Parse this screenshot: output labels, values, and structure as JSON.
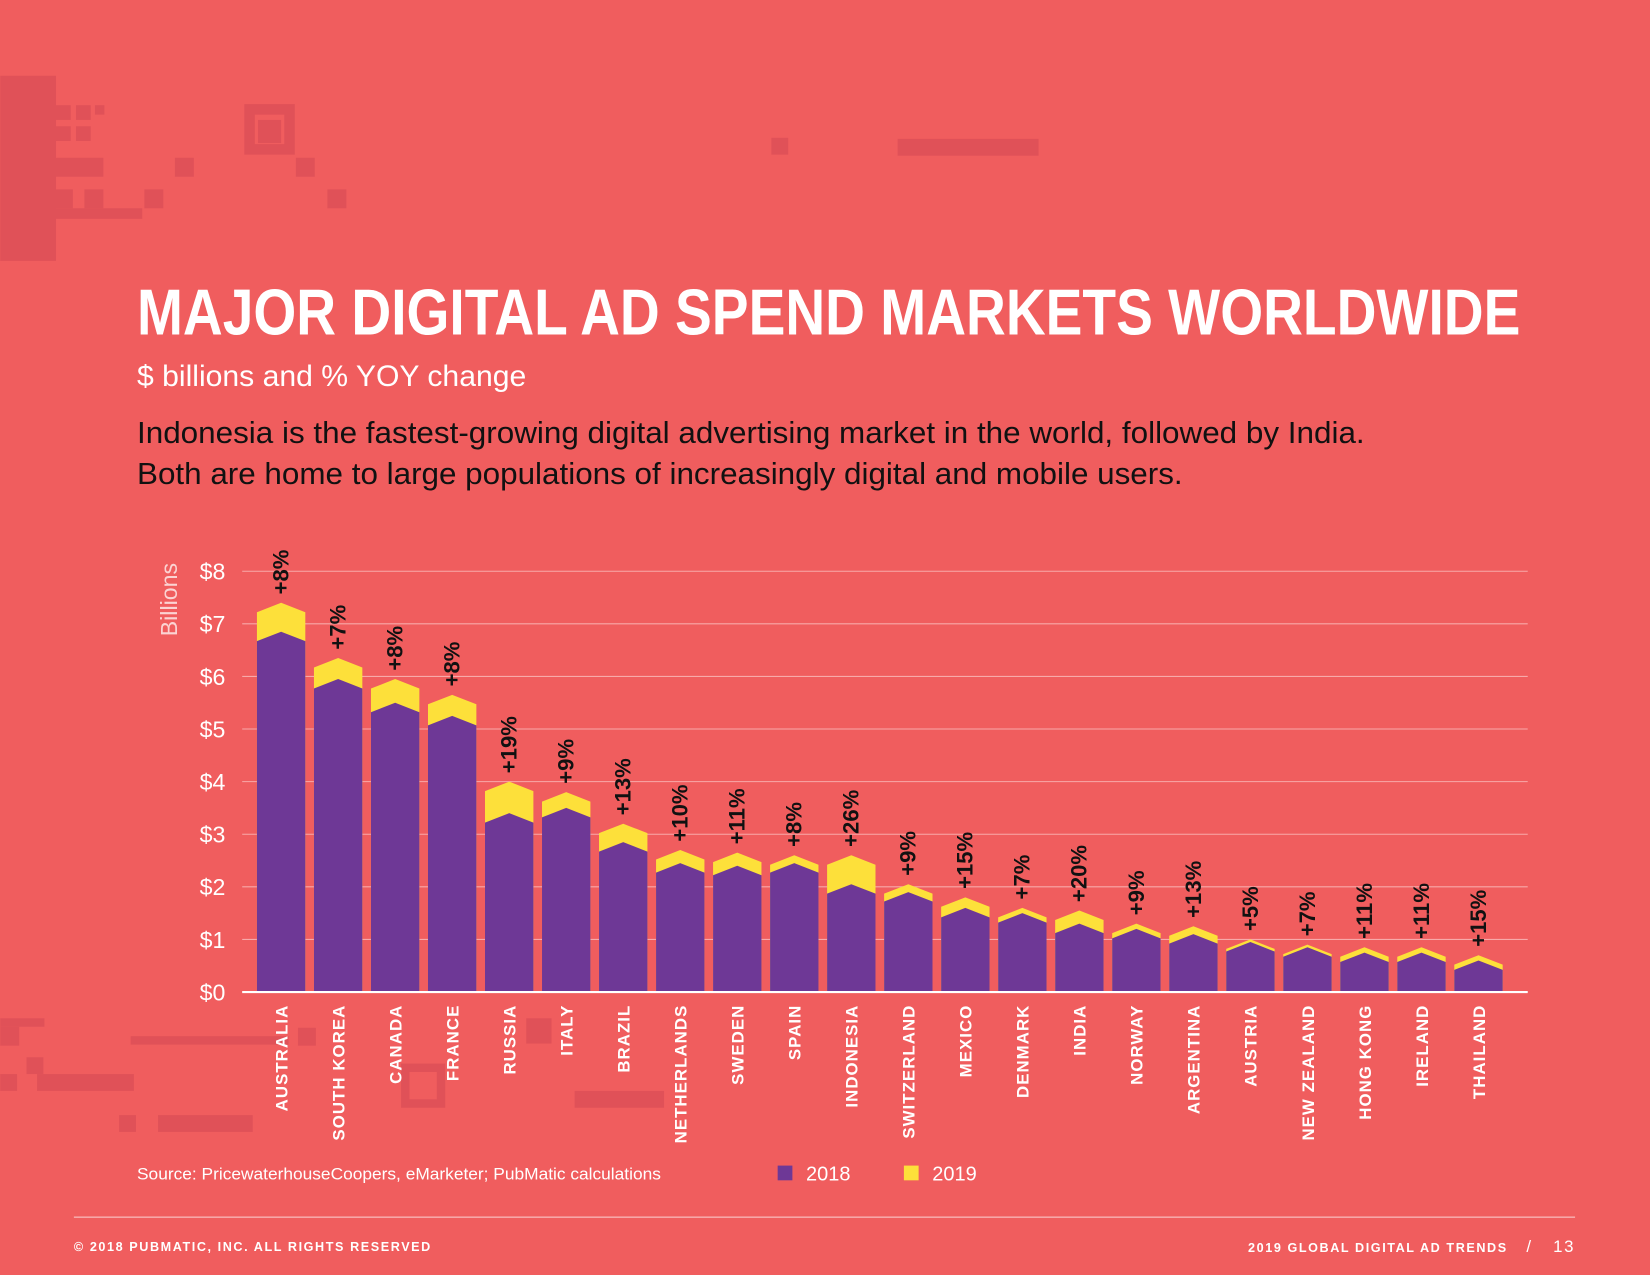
{
  "chart_data": {
    "type": "bar",
    "title": "MAJOR DIGITAL AD SPEND MARKETS WORLDWIDE",
    "subtitle": "$ billions and % YOY change",
    "description": [
      "Indonesia is the fastest-growing digital advertising market in the world, followed by India.",
      "Both are home to large populations of increasingly digital and mobile users."
    ],
    "y_axis_label": "Billions",
    "categories": [
      "AUSTRALIA",
      "SOUTH KOREA",
      "CANADA",
      "FRANCE",
      "RUSSIA",
      "ITALY",
      "BRAZIL",
      "NETHERLANDS",
      "SWEDEN",
      "SPAIN",
      "INDONESIA",
      "SWITZERLAND",
      "MEXICO",
      "DENMARK",
      "INDIA",
      "NORWAY",
      "ARGENTINA",
      "AUSTRIA",
      "NEW ZEALAND",
      "HONG KONG",
      "IRELAND",
      "THAILAND"
    ],
    "series": [
      {
        "name": "2018",
        "color": "#6e3896",
        "values": [
          6.85,
          5.95,
          5.5,
          5.25,
          3.4,
          3.5,
          2.85,
          2.45,
          2.4,
          2.45,
          2.05,
          1.9,
          1.6,
          1.5,
          1.3,
          1.2,
          1.1,
          0.95,
          0.85,
          0.75,
          0.75,
          0.6
        ]
      },
      {
        "name": "2019",
        "color": "#fde03a",
        "values": [
          7.4,
          6.35,
          5.95,
          5.65,
          4.0,
          3.8,
          3.2,
          2.7,
          2.65,
          2.6,
          2.6,
          2.05,
          1.8,
          1.6,
          1.55,
          1.3,
          1.25,
          1.0,
          0.9,
          0.85,
          0.85,
          0.7
        ]
      }
    ],
    "changes": [
      "+8%",
      "+7%",
      "+8%",
      "+8%",
      "+19%",
      "+9%",
      "+13%",
      "+10%",
      "+11%",
      "+8%",
      "+26%",
      "+9%",
      "+15%",
      "+7%",
      "+20%",
      "+9%",
      "+13%",
      "+5%",
      "+7%",
      "+11%",
      "+11%",
      "+15%"
    ],
    "ylim": [
      0,
      8
    ],
    "yticks": [
      {
        "value": 0,
        "label": "$0"
      },
      {
        "value": 1,
        "label": "$1"
      },
      {
        "value": 2,
        "label": "$2"
      },
      {
        "value": 3,
        "label": "$3"
      },
      {
        "value": 4,
        "label": "$4"
      },
      {
        "value": 5,
        "label": "$5"
      },
      {
        "value": 6,
        "label": "$6"
      },
      {
        "value": 7,
        "label": "$7"
      },
      {
        "value": 8,
        "label": "$8"
      }
    ],
    "grid": true,
    "source": "Source: PricewaterhouseCoopers, eMarketer; PubMatic calculations",
    "footer_left": "© 2018 PUBMATIC, INC. ALL RIGHTS RESERVED",
    "footer_right": "2019 GLOBAL DIGITAL AD TRENDS",
    "separator": "/",
    "page_number": "13"
  }
}
